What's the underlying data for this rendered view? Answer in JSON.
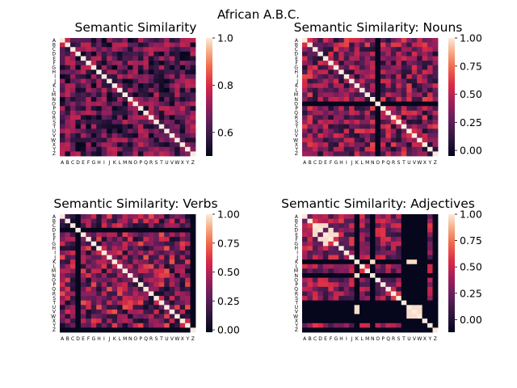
{
  "figure_title": "African A.B.C.",
  "letters": [
    "A",
    "B",
    "C",
    "D",
    "E",
    "F",
    "G",
    "H",
    "I",
    "J",
    "K",
    "L",
    "M",
    "N",
    "O",
    "P",
    "Q",
    "R",
    "S",
    "T",
    "U",
    "V",
    "W",
    "X",
    "Y",
    "Z"
  ],
  "chart_data": [
    {
      "type": "heatmap",
      "title": "Semantic Similarity",
      "colormap": "rocket",
      "vmin": 0.5,
      "vmax": 1.0,
      "colorbar_ticks": [
        0.6,
        0.8,
        1.0
      ],
      "colorbar_tick_labels": [
        "0.6",
        "0.8",
        "1.0"
      ],
      "diagonal": 1.0,
      "base_range": [
        0.5,
        0.78
      ],
      "dark_rows": [],
      "bright_pairs": []
    },
    {
      "type": "heatmap",
      "title": "Semantic Similarity: Nouns",
      "colormap": "rocket",
      "vmin": -0.05,
      "vmax": 1.0,
      "colorbar_ticks": [
        0.0,
        0.25,
        0.5,
        0.75,
        1.0
      ],
      "colorbar_tick_labels": [
        "0.00",
        "0.25",
        "0.50",
        "0.75",
        "1.00"
      ],
      "diagonal": 1.0,
      "base_range": [
        0.05,
        0.65
      ],
      "dark_rows": [
        "O"
      ],
      "bright_pairs": []
    },
    {
      "type": "heatmap",
      "title": "Semantic Similarity: Verbs",
      "colormap": "rocket",
      "vmin": -0.02,
      "vmax": 1.0,
      "colorbar_ticks": [
        0.0,
        0.25,
        0.5,
        0.75,
        1.0
      ],
      "colorbar_tick_labels": [
        "0.00",
        "0.25",
        "0.50",
        "0.75",
        "1.00"
      ],
      "diagonal": 1.0,
      "base_range": [
        0.05,
        0.7
      ],
      "dark_rows": [
        "D",
        "Z"
      ],
      "dark_cols": [
        "D",
        "Z"
      ],
      "bright_pairs": []
    },
    {
      "type": "heatmap",
      "title": "Semantic Similarity: Adjectives",
      "colormap": "rocket",
      "vmin": -0.12,
      "vmax": 1.0,
      "colorbar_ticks": [
        0.0,
        0.25,
        0.5,
        0.75,
        1.0
      ],
      "colorbar_tick_labels": [
        "0.00",
        "0.25",
        "0.50",
        "0.75",
        "1.00"
      ],
      "diagonal": 1.0,
      "base_range": [
        0.05,
        0.6
      ],
      "dark_rows": [
        "K",
        "N",
        "T",
        "U",
        "V",
        "W",
        "X",
        "Z"
      ],
      "dark_cols": [
        "K",
        "N",
        "T",
        "U",
        "V",
        "W",
        "X",
        "Z"
      ],
      "bright_pairs": [
        [
          "C",
          "D"
        ],
        [
          "D",
          "C"
        ],
        [
          "C",
          "E"
        ],
        [
          "E",
          "C"
        ],
        [
          "E",
          "F"
        ],
        [
          "F",
          "E"
        ],
        [
          "D",
          "F"
        ],
        [
          "F",
          "D"
        ],
        [
          "E",
          "G"
        ],
        [
          "G",
          "E"
        ],
        [
          "K",
          "N"
        ],
        [
          "N",
          "K"
        ],
        [
          "K",
          "U"
        ],
        [
          "U",
          "K"
        ],
        [
          "K",
          "V"
        ],
        [
          "V",
          "K"
        ],
        [
          "U",
          "V"
        ],
        [
          "V",
          "U"
        ],
        [
          "U",
          "W"
        ],
        [
          "W",
          "U"
        ],
        [
          "V",
          "W"
        ],
        [
          "W",
          "V"
        ]
      ]
    }
  ]
}
